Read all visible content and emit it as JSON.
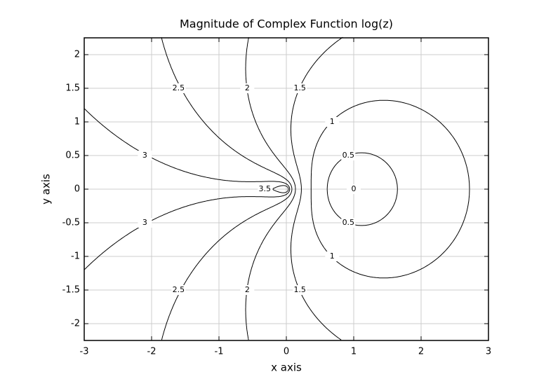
{
  "chart_data": {
    "type": "contour",
    "title": "Magnitude of Complex Function log(z)",
    "x_label": "x axis",
    "y_label": "y axis",
    "levels": [
      0,
      0.5,
      1,
      1.5,
      2,
      2.5,
      3,
      3.5
    ],
    "xlim": [
      -3,
      3
    ],
    "ylim": [
      -2.25,
      2.25
    ],
    "xticks": [
      -3,
      -2,
      -1,
      0,
      1,
      2,
      3
    ],
    "yticks": [
      -2,
      -1.5,
      -1,
      -0.5,
      0,
      0.5,
      1,
      1.5,
      2
    ],
    "grid": true,
    "color": "#000000"
  }
}
